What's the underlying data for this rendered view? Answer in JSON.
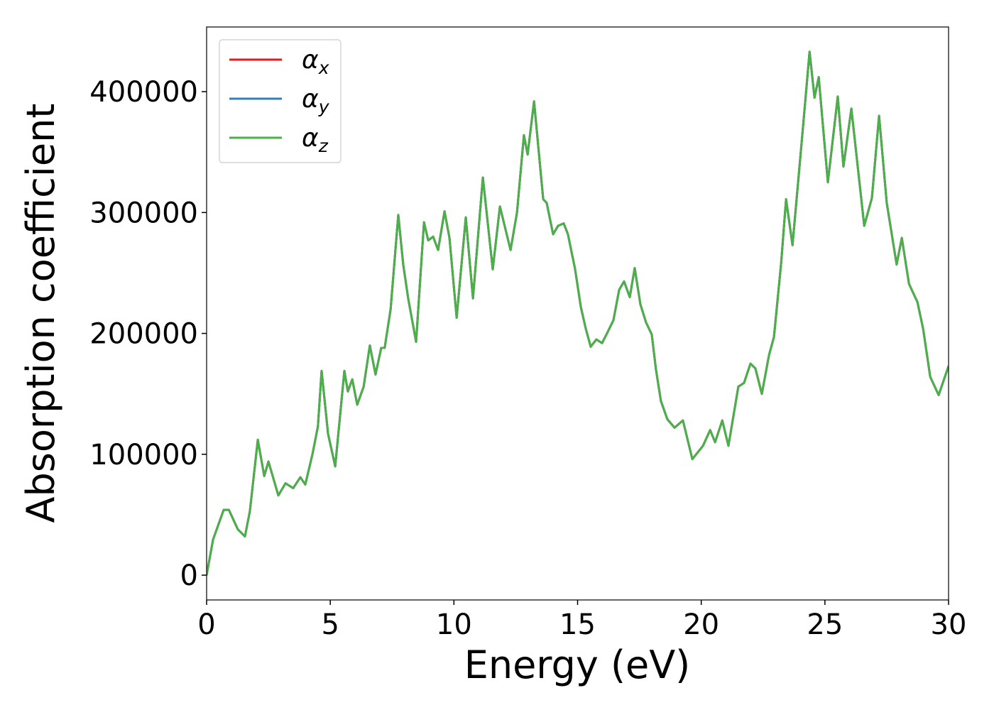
{
  "chart_data": {
    "type": "line",
    "xlabel": "Energy (eV)",
    "ylabel": "Absorption coefficient",
    "xlim": [
      0,
      30
    ],
    "xticks": [
      0,
      5,
      10,
      15,
      20,
      25,
      30
    ],
    "ylim": [
      -20500,
      453500
    ],
    "yticks": [
      0,
      100000,
      200000,
      300000,
      400000
    ],
    "legend": "upper left",
    "x": [
      0,
      0.26,
      0.69,
      0.9,
      1.26,
      1.55,
      1.75,
      2.07,
      2.33,
      2.5,
      2.9,
      3.19,
      3.5,
      3.79,
      3.99,
      4.28,
      4.5,
      4.65,
      4.91,
      5.2,
      5.57,
      5.71,
      5.89,
      6.09,
      6.35,
      6.6,
      6.83,
      7.06,
      7.2,
      7.44,
      7.75,
      7.95,
      8.15,
      8.47,
      8.79,
      8.96,
      9.16,
      9.36,
      9.62,
      9.82,
      10.11,
      10.48,
      10.77,
      11.17,
      11.57,
      11.86,
      12.29,
      12.55,
      12.83,
      12.98,
      13.24,
      13.61,
      13.75,
      14.01,
      14.21,
      14.44,
      14.61,
      14.9,
      15.13,
      15.33,
      15.53,
      15.76,
      15.99,
      16.19,
      16.45,
      16.68,
      16.88,
      17.11,
      17.31,
      17.54,
      17.77,
      18,
      18.17,
      18.37,
      18.63,
      18.92,
      19.26,
      19.64,
      20.07,
      20.36,
      20.56,
      20.85,
      21.1,
      21.5,
      21.73,
      21.99,
      22.19,
      22.45,
      22.74,
      22.94,
      23.23,
      23.43,
      23.69,
      24.09,
      24.38,
      24.58,
      24.75,
      25.12,
      25.52,
      25.75,
      26.07,
      26.59,
      26.9,
      27.19,
      27.5,
      27.9,
      28.11,
      28.4,
      28.74,
      28.97,
      29.26,
      29.6,
      30
    ],
    "series": [
      {
        "name": "αx",
        "color": "#e41a1c",
        "values": [
          0,
          29400,
          54000,
          54000,
          38000,
          32000,
          53000,
          112000,
          82000,
          94000,
          66000,
          76000,
          72000,
          81000,
          75000,
          100000,
          123000,
          169000,
          117000,
          90000,
          169000,
          152000,
          162000,
          141000,
          156000,
          190000,
          166000,
          188000,
          188000,
          220000,
          298000,
          257000,
          229000,
          193000,
          292000,
          277000,
          280000,
          269000,
          301000,
          279000,
          213000,
          296000,
          229000,
          329000,
          253000,
          305000,
          269000,
          300000,
          364000,
          348000,
          392000,
          311000,
          308000,
          282000,
          289000,
          291000,
          282000,
          253000,
          222000,
          204000,
          189000,
          195000,
          192000,
          200000,
          211000,
          236000,
          243000,
          230000,
          254000,
          224000,
          209000,
          199000,
          170000,
          144000,
          129000,
          122000,
          128000,
          96000,
          107000,
          120000,
          110000,
          128000,
          107000,
          156000,
          159000,
          175000,
          171000,
          150000,
          182000,
          197000,
          258000,
          311000,
          273000,
          365000,
          433000,
          395000,
          412000,
          325000,
          396000,
          338000,
          386000,
          289000,
          312000,
          380000,
          308000,
          257000,
          279000,
          241000,
          226000,
          204000,
          164000,
          149000,
          173000
        ]
      },
      {
        "name": "αy",
        "color": "#377eb8",
        "values": [
          0,
          29400,
          54000,
          54000,
          38000,
          32000,
          53000,
          112000,
          82000,
          94000,
          66000,
          76000,
          72000,
          81000,
          75000,
          100000,
          123000,
          169000,
          117000,
          90000,
          169000,
          152000,
          162000,
          141000,
          156000,
          190000,
          166000,
          188000,
          188000,
          220000,
          298000,
          257000,
          229000,
          193000,
          292000,
          277000,
          280000,
          269000,
          301000,
          279000,
          213000,
          296000,
          229000,
          329000,
          253000,
          305000,
          269000,
          300000,
          364000,
          348000,
          392000,
          311000,
          308000,
          282000,
          289000,
          291000,
          282000,
          253000,
          222000,
          204000,
          189000,
          195000,
          192000,
          200000,
          211000,
          236000,
          243000,
          230000,
          254000,
          224000,
          209000,
          199000,
          170000,
          144000,
          129000,
          122000,
          128000,
          96000,
          107000,
          120000,
          110000,
          128000,
          107000,
          156000,
          159000,
          175000,
          171000,
          150000,
          182000,
          197000,
          258000,
          311000,
          273000,
          365000,
          433000,
          395000,
          412000,
          325000,
          396000,
          338000,
          386000,
          289000,
          312000,
          380000,
          308000,
          257000,
          279000,
          241000,
          226000,
          204000,
          164000,
          149000,
          173000
        ]
      },
      {
        "name": "αz",
        "color": "#4daf4a",
        "values": [
          0,
          29400,
          54000,
          54000,
          38000,
          32000,
          53000,
          112000,
          82000,
          94000,
          66000,
          76000,
          72000,
          81000,
          75000,
          100000,
          123000,
          169000,
          117000,
          90000,
          169000,
          152000,
          162000,
          141000,
          156000,
          190000,
          166000,
          188000,
          188000,
          220000,
          298000,
          257000,
          229000,
          193000,
          292000,
          277000,
          280000,
          269000,
          301000,
          279000,
          213000,
          296000,
          229000,
          329000,
          253000,
          305000,
          269000,
          300000,
          364000,
          348000,
          392000,
          311000,
          308000,
          282000,
          289000,
          291000,
          282000,
          253000,
          222000,
          204000,
          189000,
          195000,
          192000,
          200000,
          211000,
          236000,
          243000,
          230000,
          254000,
          224000,
          209000,
          199000,
          170000,
          144000,
          129000,
          122000,
          128000,
          96000,
          107000,
          120000,
          110000,
          128000,
          107000,
          156000,
          159000,
          175000,
          171000,
          150000,
          182000,
          197000,
          258000,
          311000,
          273000,
          365000,
          433000,
          395000,
          412000,
          325000,
          396000,
          338000,
          386000,
          289000,
          312000,
          380000,
          308000,
          257000,
          279000,
          241000,
          226000,
          204000,
          164000,
          149000,
          173000
        ]
      }
    ]
  }
}
